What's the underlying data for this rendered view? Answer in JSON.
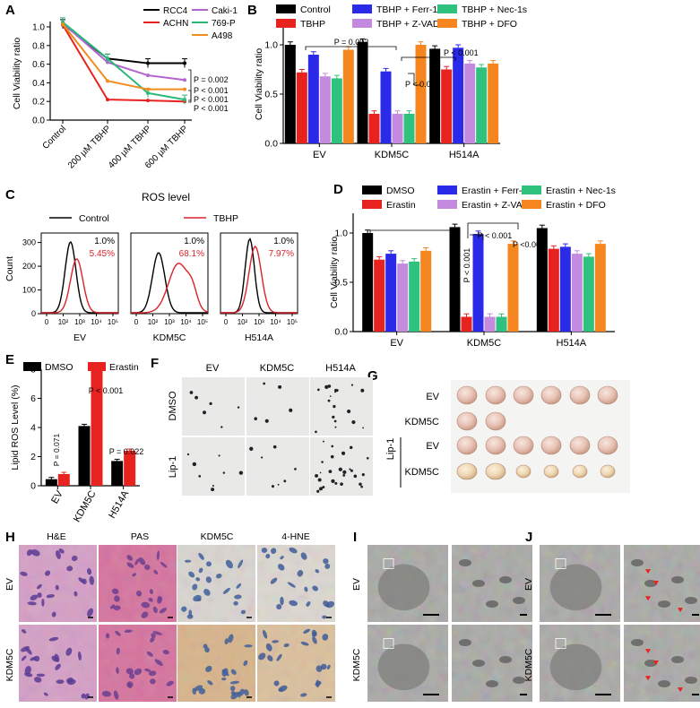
{
  "chart_data": [
    {
      "panel": "A",
      "type": "line",
      "ylabel": "Cell Viability ratio",
      "categories": [
        "Control",
        "200 µM TBHP",
        "400 µM TBHP",
        "600 µM TBHP"
      ],
      "ylim": [
        0,
        1.0
      ],
      "yticks": [
        "0.0",
        "0.2",
        "0.4",
        "0.6",
        "0.8",
        "1.0"
      ],
      "series": [
        {
          "name": "RCC4",
          "color": "#000000",
          "values": [
            1.03,
            0.66,
            0.61,
            0.61
          ]
        },
        {
          "name": "ACHN",
          "color": "#e8231f",
          "values": [
            1.02,
            0.22,
            0.21,
            0.2
          ]
        },
        {
          "name": "Caki-1",
          "color": "#b463d1",
          "values": [
            1.04,
            0.62,
            0.48,
            0.43
          ]
        },
        {
          "name": "769-P",
          "color": "#29b77a",
          "values": [
            1.05,
            0.66,
            0.29,
            0.22
          ]
        },
        {
          "name": "A498",
          "color": "#f28c1f",
          "values": [
            1.03,
            0.42,
            0.33,
            0.33
          ]
        }
      ],
      "annotations": [
        "P = 0.002",
        "P < 0.001",
        "P < 0.001",
        "P < 0.001"
      ]
    },
    {
      "panel": "B",
      "type": "bar",
      "ylabel": "Cell Viability ratio",
      "categories": [
        "EV",
        "KDM5C",
        "H514A"
      ],
      "ylim": [
        0,
        1.2
      ],
      "yticks": [
        "0.0",
        "0.5",
        "1.0"
      ],
      "series": [
        {
          "name": "Control",
          "color": "#000000",
          "values": [
            1.0,
            1.03,
            0.96
          ]
        },
        {
          "name": "TBHP",
          "color": "#e8231f",
          "values": [
            0.72,
            0.3,
            0.75
          ]
        },
        {
          "name": "TBHP + Ferr-1",
          "color": "#2a2ae8",
          "values": [
            0.9,
            0.73,
            0.97
          ]
        },
        {
          "name": "TBHP + Z-VAD",
          "color": "#c48ae0",
          "values": [
            0.68,
            0.3,
            0.81
          ]
        },
        {
          "name": "TBHP + Nec-1s",
          "color": "#2ec27e",
          "values": [
            0.66,
            0.3,
            0.77
          ]
        },
        {
          "name": "TBHP + DFO",
          "color": "#f5861f",
          "values": [
            0.95,
            1.0,
            0.81
          ]
        }
      ],
      "annotations": [
        "P = 0.002",
        "P < 0.001",
        "P < 0.001"
      ]
    },
    {
      "panel": "D",
      "type": "bar",
      "ylabel": "Cell Viability ratio",
      "categories": [
        "EV",
        "KDM5C",
        "H514A"
      ],
      "ylim": [
        0,
        1.2
      ],
      "yticks": [
        "0.0",
        "0.5",
        "1.0"
      ],
      "series": [
        {
          "name": "DMSO",
          "color": "#000000",
          "values": [
            1.0,
            1.06,
            1.05
          ]
        },
        {
          "name": "Erastin",
          "color": "#e8231f",
          "values": [
            0.73,
            0.15,
            0.84
          ]
        },
        {
          "name": "Erastin + Ferr-1",
          "color": "#2a2ae8",
          "values": [
            0.79,
            0.99,
            0.86
          ]
        },
        {
          "name": "Erastin + Z-VAD",
          "color": "#c48ae0",
          "values": [
            0.69,
            0.15,
            0.79
          ]
        },
        {
          "name": "Erastin + Nec-1s",
          "color": "#2ec27e",
          "values": [
            0.71,
            0.15,
            0.76
          ]
        },
        {
          "name": "Erastin + DFO",
          "color": "#f5861f",
          "values": [
            0.82,
            0.89,
            0.89
          ]
        }
      ],
      "annotations": [
        "P < 0.001",
        "P < 0.001",
        "P <0.001"
      ]
    },
    {
      "panel": "E",
      "type": "bar",
      "ylabel": "Lipid ROS Level (%)",
      "categories": [
        "EV",
        "KDM5C",
        "H514A"
      ],
      "ylim": [
        0,
        8
      ],
      "yticks": [
        "0",
        "2",
        "4",
        "6",
        "8"
      ],
      "series": [
        {
          "name": "DMSO",
          "color": "#000000",
          "values": [
            0.45,
            4.1,
            1.7
          ]
        },
        {
          "name": "Erastin",
          "color": "#e8231f",
          "values": [
            0.8,
            7.9,
            2.4
          ]
        }
      ],
      "annotations": [
        "P = 0.071",
        "P < 0.001",
        "P = 0.022"
      ]
    }
  ],
  "panels": {
    "A": "A",
    "B": "B",
    "C": "C",
    "D": "D",
    "E": "E",
    "F": "F",
    "G": "G",
    "H": "H",
    "I": "I",
    "J": "J"
  },
  "panel_c": {
    "title": "ROS level",
    "legend": [
      {
        "name": "Control",
        "color": "#000000"
      },
      {
        "name": "TBHP",
        "color": "#d9232a"
      }
    ],
    "ylabel": "Count",
    "yticks": [
      "0",
      "100",
      "200",
      "300"
    ],
    "xticks": [
      "0",
      "10²",
      "10³",
      "10⁴",
      "10⁵"
    ],
    "histograms": [
      {
        "label": "EV",
        "control_pct": "1.0%",
        "tbhp_pct": "5.45%"
      },
      {
        "label": "KDM5C",
        "control_pct": "1.0%",
        "tbhp_pct": "68.1%"
      },
      {
        "label": "H514A",
        "control_pct": "1.0%",
        "tbhp_pct": "7.97%"
      }
    ]
  },
  "panel_f": {
    "columns": [
      "EV",
      "KDM5C",
      "H514A"
    ],
    "rows": [
      "DMSO",
      "Lip-1"
    ]
  },
  "panel_g": {
    "rows": [
      "EV",
      "KDM5C",
      "EV",
      "KDM5C"
    ],
    "bracket_label": "Lip-1",
    "tumor_counts": [
      6,
      2,
      6,
      6
    ]
  },
  "panel_h": {
    "columns": [
      "H&E",
      "PAS",
      "KDM5C",
      "4-HNE"
    ],
    "rows": [
      "EV",
      "KDM5C"
    ]
  },
  "panel_i": {
    "rows": [
      "EV",
      "KDM5C"
    ]
  },
  "panel_j": {
    "rows": [
      "EV",
      "KDM5C"
    ]
  }
}
